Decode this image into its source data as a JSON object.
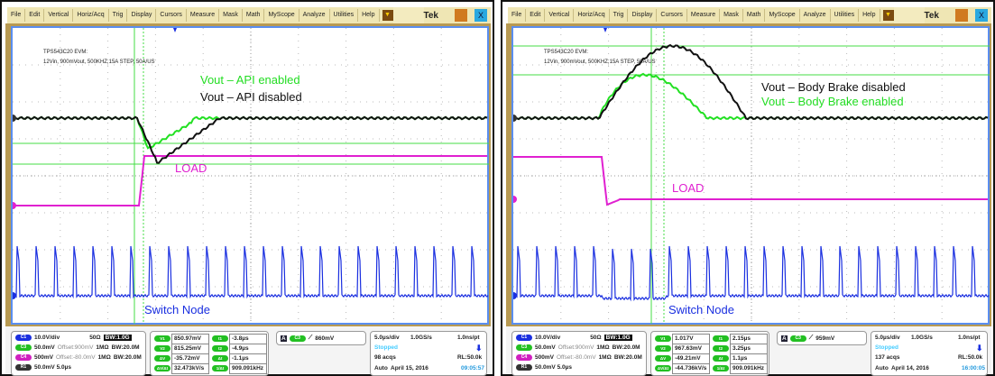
{
  "menu": [
    "File",
    "Edit",
    "Vertical",
    "Horiz/Acq",
    "Trig",
    "Display",
    "Cursors",
    "Measure",
    "Mask",
    "Math",
    "MyScope",
    "Analyze",
    "Utilities",
    "Help"
  ],
  "brand": "Tek",
  "close_label": "X",
  "colors": {
    "ch1": "#1a2fe0",
    "ch3": "#22e022",
    "ch4": "#e020d0",
    "ref": "#111111",
    "cursor": "#44dd44",
    "border": "#5a8ef0"
  },
  "panels": [
    {
      "note_title": "TPS543C20 EVM:",
      "note_sub": "12Vin, 900mVout, 500KHZ,15A STEP, 50A/US",
      "trace_labels": {
        "vout_a": "Vout – API enabled",
        "vout_b": "Vout – API disabled",
        "load": "LOAD",
        "sw": "Switch Node"
      },
      "channels": [
        {
          "id": "C1",
          "scale": "10.0V/div",
          "extra": "50Ω",
          "bw": "BW:1.0G"
        },
        {
          "id": "C3",
          "scale": "50.0mV",
          "offset": "Offset:900mV",
          "imp": "1MΩ",
          "bw": "BW:20.0M"
        },
        {
          "id": "C4",
          "scale": "500mV",
          "offset": "Offset:-80.0mV",
          "imp": "1MΩ",
          "bw": "BW:20.0M"
        },
        {
          "id": "R1",
          "scale": "50.0mV 5.0µs"
        }
      ],
      "cursors": [
        {
          "k": "V1",
          "v": "850.97mV"
        },
        {
          "k": "t1",
          "v": "-3.8µs"
        },
        {
          "k": "V2",
          "v": "815.25mV"
        },
        {
          "k": "t2",
          "v": "-4.9µs"
        },
        {
          "k": "ΔV",
          "v": "-35.72mV"
        },
        {
          "k": "Δt",
          "v": "-1.1µs"
        },
        {
          "k": "ΔV/Δt",
          "v": "32.473kV/s"
        },
        {
          "k": "1/Δt",
          "v": "909.091kHz"
        }
      ],
      "trigger": {
        "ch": "C3",
        "level": "860mV"
      },
      "acq": {
        "timebase": "5.0µs/div",
        "rate": "1.0GS/s",
        "res": "1.0ns/pt",
        "state": "Stopped",
        "acqs": "98 acqs",
        "rl": "RL:50.0k",
        "mode": "Auto",
        "date": "April 15, 2016",
        "time": "09:05:57"
      }
    },
    {
      "note_title": "TPS543C20 EVM:",
      "note_sub": "12Vin, 900mVout, 500KHZ,15A STEP, 50A/US",
      "trace_labels": {
        "vout_a": "Vout – Body Brake disabled",
        "vout_b": "Vout – Body Brake enabled",
        "load": "LOAD",
        "sw": "Switch Node"
      },
      "channels": [
        {
          "id": "C1",
          "scale": "10.0V/div",
          "extra": "50Ω",
          "bw": "BW:1.0G"
        },
        {
          "id": "C3",
          "scale": "50.0mV",
          "offset": "Offset:900mV",
          "imp": "1MΩ",
          "bw": "BW:20.0M"
        },
        {
          "id": "C4",
          "scale": "500mV",
          "offset": "Offset:-80.0mV",
          "imp": "1MΩ",
          "bw": "BW:20.0M"
        },
        {
          "id": "R1",
          "scale": "50.0mV 5.0µs"
        }
      ],
      "cursors": [
        {
          "k": "V1",
          "v": "1.017V"
        },
        {
          "k": "t1",
          "v": "2.15µs"
        },
        {
          "k": "V2",
          "v": "967.63mV"
        },
        {
          "k": "t2",
          "v": "3.25µs"
        },
        {
          "k": "ΔV",
          "v": "-49.21mV"
        },
        {
          "k": "Δt",
          "v": "1.1µs"
        },
        {
          "k": "ΔV/Δt",
          "v": "-44.736kV/s"
        },
        {
          "k": "1/Δt",
          "v": "909.091kHz"
        }
      ],
      "trigger": {
        "ch": "C3",
        "level": "959mV"
      },
      "acq": {
        "timebase": "5.0µs/div",
        "rate": "1.0GS/s",
        "res": "1.0ns/pt",
        "state": "Stopped",
        "acqs": "137 acqs",
        "rl": "RL:50.0k",
        "mode": "Auto",
        "date": "April 14, 2016",
        "time": "16:00:05"
      }
    }
  ]
}
